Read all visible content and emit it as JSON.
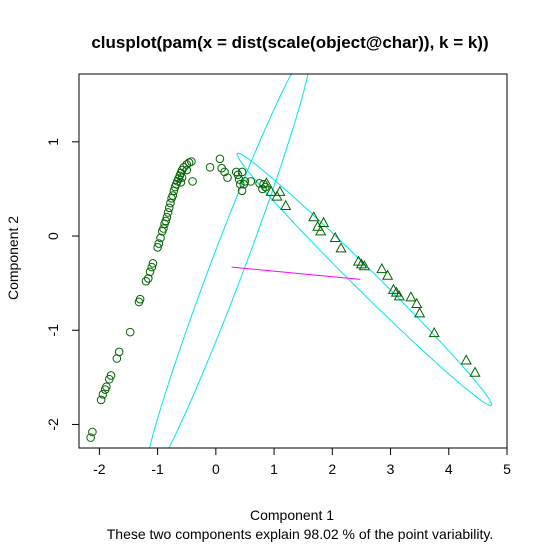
{
  "chart_data": {
    "type": "scatter",
    "title": "clusplot(pam(x = dist(scale(object@char)), k = k))",
    "subtitle": "These two components explain 98.02 % of the point variability.",
    "xlabel": "Component 1",
    "ylabel": "Component 2",
    "xlim": [
      -2.35,
      5.0
    ],
    "ylim": [
      -2.25,
      1.72
    ],
    "x_ticks": [
      -2,
      -1,
      0,
      1,
      2,
      3,
      4,
      5
    ],
    "y_ticks": [
      -2,
      -1,
      0,
      1
    ],
    "grid": false,
    "legend": "none",
    "colors": {
      "points": "#006400",
      "ellipse": "#00e5ee",
      "connector": "#ff00ff",
      "frame": "#000000"
    },
    "series": [
      {
        "marker": "circle",
        "points": [
          [
            -2.15,
            -2.14
          ],
          [
            -2.12,
            -2.08
          ],
          [
            -1.97,
            -1.74
          ],
          [
            -1.94,
            -1.68
          ],
          [
            -1.9,
            -1.63
          ],
          [
            -1.88,
            -1.6
          ],
          [
            -1.83,
            -1.52
          ],
          [
            -1.8,
            -1.48
          ],
          [
            -1.7,
            -1.3
          ],
          [
            -1.66,
            -1.23
          ],
          [
            -1.47,
            -1.02
          ],
          [
            -1.32,
            -0.7
          ],
          [
            -1.3,
            -0.67
          ],
          [
            -1.2,
            -0.48
          ],
          [
            -1.16,
            -0.45
          ],
          [
            -1.13,
            -0.38
          ],
          [
            -1.1,
            -0.33
          ],
          [
            -1.08,
            -0.29
          ],
          [
            -1.0,
            -0.12
          ],
          [
            -0.98,
            -0.08
          ],
          [
            -0.95,
            -0.02
          ],
          [
            -0.92,
            0.05
          ],
          [
            -0.9,
            0.08
          ],
          [
            -0.88,
            0.13
          ],
          [
            -0.86,
            0.16
          ],
          [
            -0.84,
            0.2
          ],
          [
            -0.82,
            0.25
          ],
          [
            -0.8,
            0.3
          ],
          [
            -0.78,
            0.35
          ],
          [
            -0.76,
            0.4
          ],
          [
            -0.74,
            0.43
          ],
          [
            -0.72,
            0.48
          ],
          [
            -0.7,
            0.52
          ],
          [
            -0.68,
            0.55
          ],
          [
            -0.66,
            0.58
          ],
          [
            -0.64,
            0.61
          ],
          [
            -0.62,
            0.64
          ],
          [
            -0.6,
            0.67
          ],
          [
            -0.58,
            0.7
          ],
          [
            -0.55,
            0.73
          ],
          [
            -0.5,
            0.76
          ],
          [
            -0.46,
            0.78
          ],
          [
            -0.42,
            0.79
          ],
          [
            -0.4,
            0.58
          ],
          [
            -0.5,
            0.7
          ],
          [
            -0.6,
            0.57
          ],
          [
            -0.58,
            0.62
          ],
          [
            -0.1,
            0.73
          ],
          [
            0.07,
            0.82
          ],
          [
            0.1,
            0.72
          ],
          [
            0.15,
            0.68
          ],
          [
            0.2,
            0.62
          ],
          [
            0.35,
            0.68
          ],
          [
            0.38,
            0.65
          ],
          [
            0.4,
            0.6
          ],
          [
            0.45,
            0.68
          ],
          [
            0.48,
            0.55
          ],
          [
            0.5,
            0.58
          ],
          [
            0.42,
            0.55
          ],
          [
            0.45,
            0.48
          ],
          [
            0.6,
            0.58
          ],
          [
            0.75,
            0.56
          ],
          [
            0.8,
            0.5
          ],
          [
            0.82,
            0.55
          ],
          [
            0.85,
            0.52
          ]
        ]
      },
      {
        "marker": "triangle",
        "points": [
          [
            0.87,
            0.56
          ],
          [
            0.95,
            0.47
          ],
          [
            1.05,
            0.42
          ],
          [
            1.1,
            0.47
          ],
          [
            1.2,
            0.32
          ],
          [
            1.68,
            0.2
          ],
          [
            1.75,
            0.1
          ],
          [
            1.8,
            0.05
          ],
          [
            1.85,
            0.14
          ],
          [
            2.05,
            -0.02
          ],
          [
            2.15,
            -0.13
          ],
          [
            2.45,
            -0.27
          ],
          [
            2.5,
            -0.3
          ],
          [
            2.55,
            -0.32
          ],
          [
            2.85,
            -0.35
          ],
          [
            2.95,
            -0.42
          ],
          [
            3.05,
            -0.57
          ],
          [
            3.1,
            -0.6
          ],
          [
            3.15,
            -0.64
          ],
          [
            3.35,
            -0.65
          ],
          [
            3.45,
            -0.72
          ],
          [
            3.5,
            -0.82
          ],
          [
            3.75,
            -1.03
          ],
          [
            4.3,
            -1.32
          ],
          [
            4.45,
            -1.45
          ]
        ]
      }
    ],
    "ellipses": [
      {
        "center": [
          0.2,
          -0.32
        ],
        "semi_axes": [
          2.71,
          0.26
        ],
        "angle_deg": 58.4
      },
      {
        "center": [
          2.55,
          -0.46
        ],
        "semi_axes": [
          2.56,
          0.14
        ],
        "angle_deg": -31.4
      }
    ],
    "connector": {
      "from": [
        0.27,
        -0.33
      ],
      "to": [
        2.48,
        -0.46
      ]
    }
  }
}
